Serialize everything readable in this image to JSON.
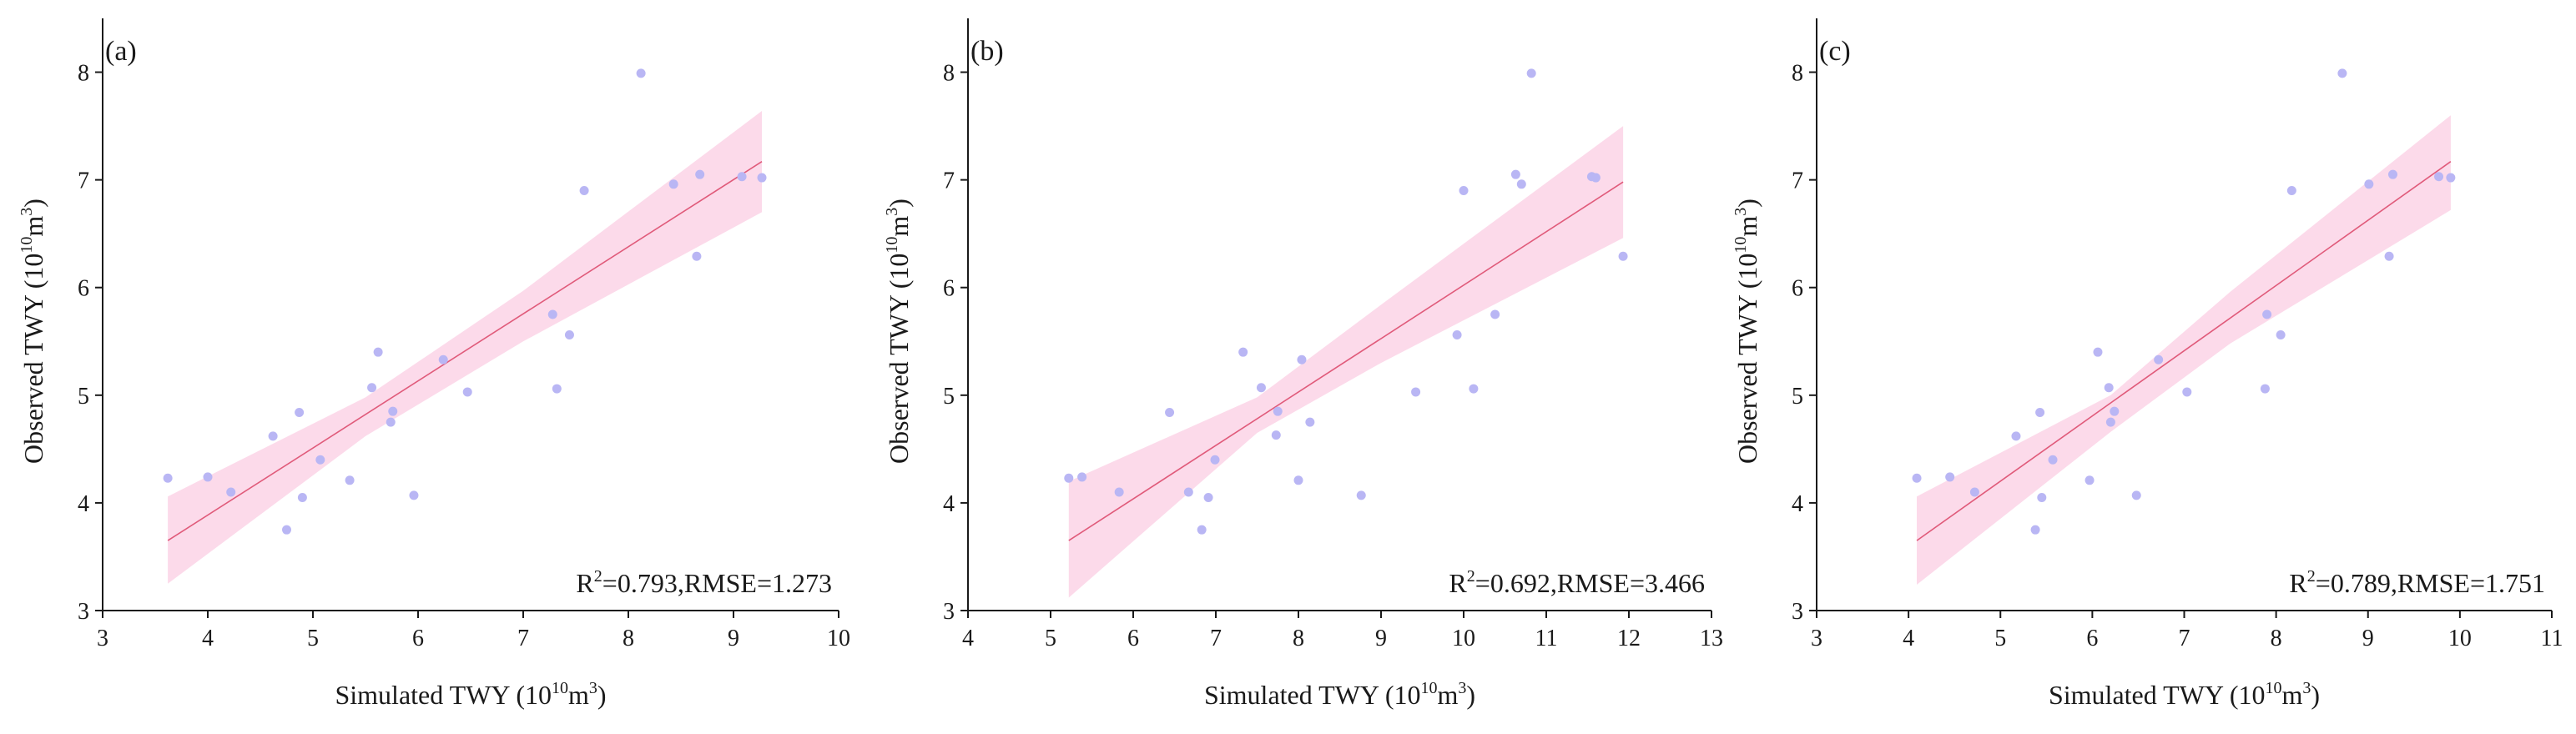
{
  "chart_data": [
    {
      "type": "scatter",
      "panel_label": "(a)",
      "xlabel": "Simulated TWY (10",
      "xlabel_sup": "10",
      "xlabel_unit": "m",
      "xlabel_sup2": "3",
      "xlabel_close": ")",
      "ylabel": "Observed TWY (10",
      "ylabel_sup": "10",
      "ylabel_unit": "m",
      "ylabel_sup2": "3",
      "ylabel_close": ")",
      "xlim": [
        3,
        10
      ],
      "ylim": [
        3,
        8.5
      ],
      "xticks": [
        3,
        4,
        5,
        6,
        7,
        8,
        9,
        10
      ],
      "yticks": [
        3,
        4,
        5,
        6,
        7,
        8
      ],
      "stats_r": "R",
      "stats_sup": "2",
      "stats_text": "=0.793,RMSE=1.273",
      "points": [
        {
          "x": 3.62,
          "y": 4.23
        },
        {
          "x": 4.0,
          "y": 4.24
        },
        {
          "x": 4.22,
          "y": 4.1
        },
        {
          "x": 4.62,
          "y": 4.62
        },
        {
          "x": 4.75,
          "y": 3.75
        },
        {
          "x": 4.87,
          "y": 4.84
        },
        {
          "x": 4.9,
          "y": 4.05
        },
        {
          "x": 5.07,
          "y": 4.4
        },
        {
          "x": 5.35,
          "y": 4.21
        },
        {
          "x": 5.56,
          "y": 5.07
        },
        {
          "x": 5.62,
          "y": 5.4
        },
        {
          "x": 5.74,
          "y": 4.75
        },
        {
          "x": 5.76,
          "y": 4.85
        },
        {
          "x": 5.96,
          "y": 4.07
        },
        {
          "x": 6.24,
          "y": 5.33
        },
        {
          "x": 6.47,
          "y": 5.03
        },
        {
          "x": 7.28,
          "y": 5.75
        },
        {
          "x": 7.32,
          "y": 5.06
        },
        {
          "x": 7.44,
          "y": 5.56
        },
        {
          "x": 7.58,
          "y": 6.9
        },
        {
          "x": 8.12,
          "y": 7.99
        },
        {
          "x": 8.43,
          "y": 6.96
        },
        {
          "x": 8.65,
          "y": 6.29
        },
        {
          "x": 8.68,
          "y": 7.05
        },
        {
          "x": 9.08,
          "y": 7.03
        },
        {
          "x": 9.27,
          "y": 7.02
        }
      ],
      "fit": {
        "x": [
          3.62,
          9.27
        ],
        "y": [
          3.65,
          7.17
        ]
      },
      "band": {
        "x": [
          3.62,
          5.5,
          7.0,
          9.27
        ],
        "lower": [
          3.25,
          4.62,
          5.5,
          6.7
        ],
        "upper": [
          4.06,
          4.98,
          5.97,
          7.64
        ]
      }
    },
    {
      "type": "scatter",
      "panel_label": "(b)",
      "xlabel": "Simulated TWY (10",
      "xlabel_sup": "10",
      "xlabel_unit": "m",
      "xlabel_sup2": "3",
      "xlabel_close": ")",
      "ylabel": "Observed TWY (10",
      "ylabel_sup": "10",
      "ylabel_unit": "m",
      "ylabel_sup2": "3",
      "ylabel_close": ")",
      "xlim": [
        4,
        13
      ],
      "ylim": [
        3,
        8.5
      ],
      "xticks": [
        4,
        5,
        6,
        7,
        8,
        9,
        10,
        11,
        12,
        13
      ],
      "yticks": [
        3,
        4,
        5,
        6,
        7,
        8
      ],
      "stats_r": "R",
      "stats_sup": "2",
      "stats_text": "=0.692,RMSE=3.466",
      "points": [
        {
          "x": 5.22,
          "y": 4.23
        },
        {
          "x": 5.38,
          "y": 4.24
        },
        {
          "x": 5.83,
          "y": 4.1
        },
        {
          "x": 6.44,
          "y": 4.84
        },
        {
          "x": 6.67,
          "y": 4.1
        },
        {
          "x": 6.83,
          "y": 3.75
        },
        {
          "x": 6.91,
          "y": 4.05
        },
        {
          "x": 6.99,
          "y": 4.4
        },
        {
          "x": 7.33,
          "y": 5.4
        },
        {
          "x": 7.55,
          "y": 5.07
        },
        {
          "x": 7.73,
          "y": 4.63
        },
        {
          "x": 7.75,
          "y": 4.85
        },
        {
          "x": 8.0,
          "y": 4.21
        },
        {
          "x": 8.04,
          "y": 5.33
        },
        {
          "x": 8.14,
          "y": 4.75
        },
        {
          "x": 8.76,
          "y": 4.07
        },
        {
          "x": 9.42,
          "y": 5.03
        },
        {
          "x": 9.92,
          "y": 5.56
        },
        {
          "x": 10.0,
          "y": 6.9
        },
        {
          "x": 10.12,
          "y": 5.06
        },
        {
          "x": 10.38,
          "y": 5.75
        },
        {
          "x": 10.63,
          "y": 7.05
        },
        {
          "x": 10.7,
          "y": 6.96
        },
        {
          "x": 10.82,
          "y": 7.99
        },
        {
          "x": 11.55,
          "y": 7.03
        },
        {
          "x": 11.6,
          "y": 7.02
        },
        {
          "x": 11.93,
          "y": 6.29
        }
      ],
      "fit": {
        "x": [
          5.22,
          11.93
        ],
        "y": [
          3.65,
          6.98
        ]
      },
      "band": {
        "x": [
          5.22,
          7.5,
          9.0,
          11.93
        ],
        "lower": [
          3.12,
          4.65,
          5.3,
          6.46
        ],
        "upper": [
          4.2,
          4.98,
          5.84,
          7.5
        ]
      }
    },
    {
      "type": "scatter",
      "panel_label": "(c)",
      "xlabel": "Simulated TWY (10",
      "xlabel_sup": "10",
      "xlabel_unit": "m",
      "xlabel_sup2": "3",
      "xlabel_close": ")",
      "ylabel": "Observed TWY (10",
      "ylabel_sup": "10",
      "ylabel_unit": "m",
      "ylabel_sup2": "3",
      "ylabel_close": ")",
      "xlim": [
        3,
        11
      ],
      "ylim": [
        3,
        8.5
      ],
      "xticks": [
        3,
        4,
        5,
        6,
        7,
        8,
        9,
        10,
        11
      ],
      "yticks": [
        3,
        4,
        5,
        6,
        7,
        8
      ],
      "stats_r": "R",
      "stats_sup": "2",
      "stats_text": "=0.789,RMSE=1.751",
      "points": [
        {
          "x": 4.09,
          "y": 4.23
        },
        {
          "x": 4.45,
          "y": 4.24
        },
        {
          "x": 4.72,
          "y": 4.1
        },
        {
          "x": 5.17,
          "y": 4.62
        },
        {
          "x": 5.38,
          "y": 3.75
        },
        {
          "x": 5.43,
          "y": 4.84
        },
        {
          "x": 5.45,
          "y": 4.05
        },
        {
          "x": 5.57,
          "y": 4.4
        },
        {
          "x": 5.97,
          "y": 4.21
        },
        {
          "x": 6.06,
          "y": 5.4
        },
        {
          "x": 6.18,
          "y": 5.07
        },
        {
          "x": 6.2,
          "y": 4.75
        },
        {
          "x": 6.24,
          "y": 4.85
        },
        {
          "x": 6.48,
          "y": 4.07
        },
        {
          "x": 6.72,
          "y": 5.33
        },
        {
          "x": 7.03,
          "y": 5.03
        },
        {
          "x": 7.88,
          "y": 5.06
        },
        {
          "x": 7.9,
          "y": 5.75
        },
        {
          "x": 8.05,
          "y": 5.56
        },
        {
          "x": 8.17,
          "y": 6.9
        },
        {
          "x": 8.72,
          "y": 7.99
        },
        {
          "x": 9.01,
          "y": 6.96
        },
        {
          "x": 9.23,
          "y": 6.29
        },
        {
          "x": 9.27,
          "y": 7.05
        },
        {
          "x": 9.77,
          "y": 7.03
        },
        {
          "x": 9.9,
          "y": 7.02
        }
      ],
      "fit": {
        "x": [
          4.09,
          9.9
        ],
        "y": [
          3.65,
          7.17
        ]
      },
      "band": {
        "x": [
          4.09,
          6.2,
          7.5,
          9.9
        ],
        "lower": [
          3.24,
          4.66,
          5.48,
          6.72
        ],
        "upper": [
          4.06,
          5.0,
          5.96,
          7.6
        ]
      }
    }
  ],
  "colors": {
    "point": "#b9b6f4",
    "fit_line": "#e05a7a",
    "band": "#fbd3e6",
    "axis": "#1a1a1a"
  }
}
